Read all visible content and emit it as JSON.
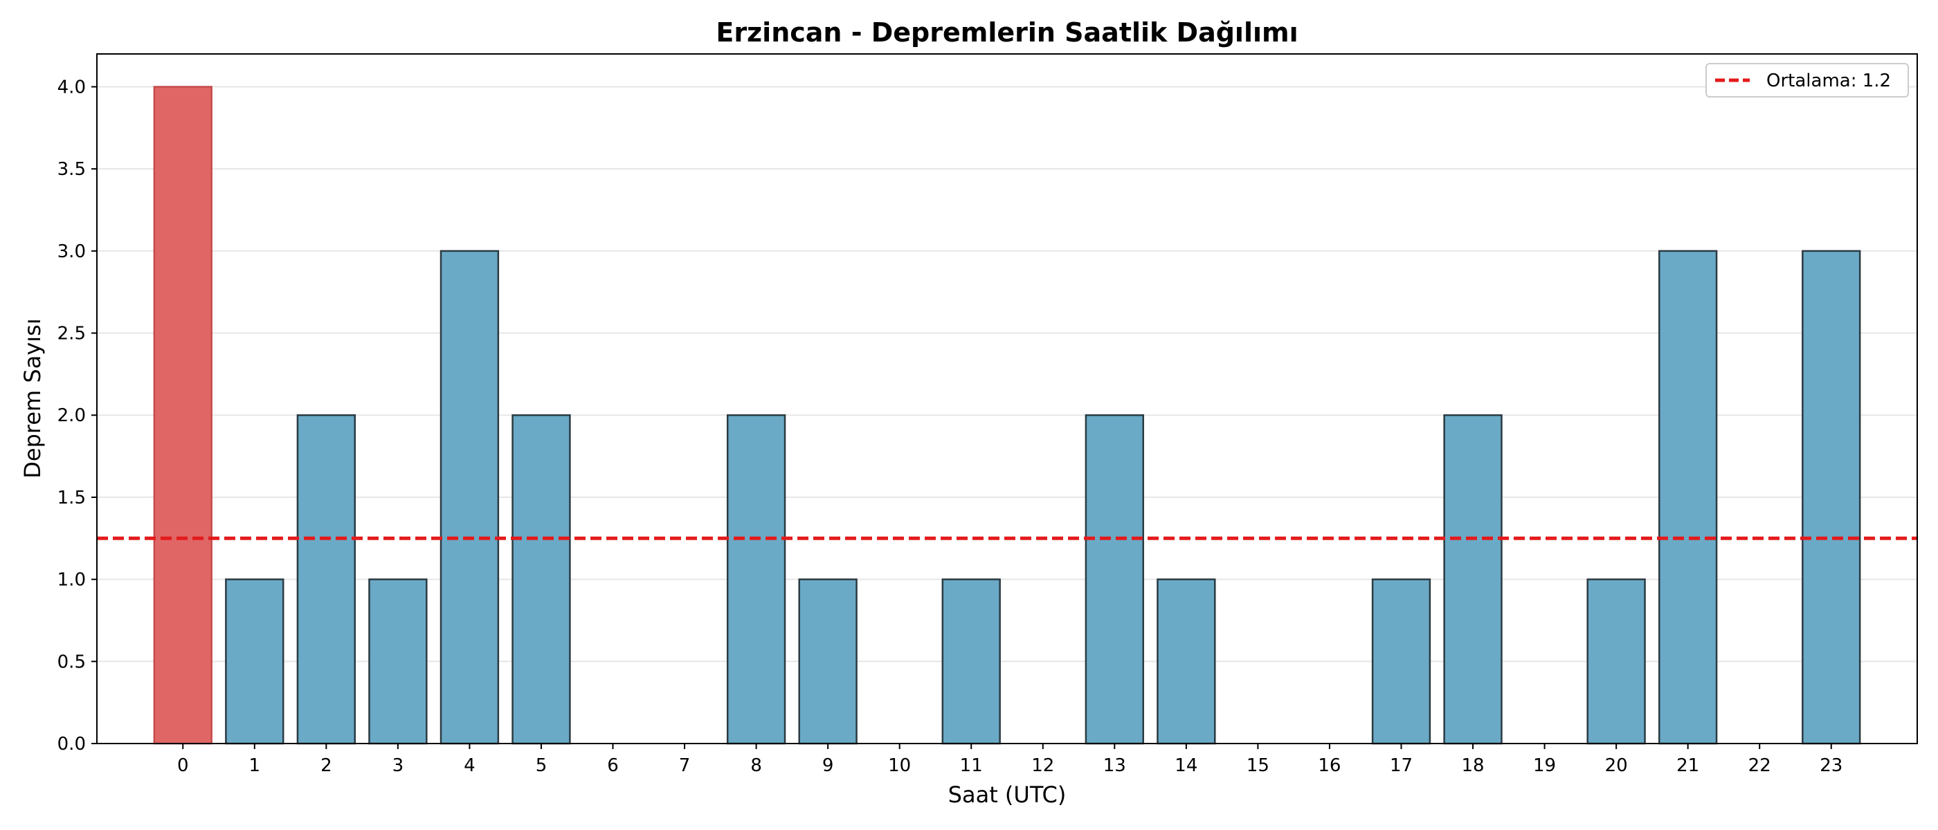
{
  "chart_data": {
    "type": "bar",
    "title": "Erzincan - Depremlerin Saatlik Dağılımı",
    "xlabel": "Saat (UTC)",
    "ylabel": "Deprem Sayısı",
    "categories": [
      "0",
      "1",
      "2",
      "3",
      "4",
      "5",
      "6",
      "7",
      "8",
      "9",
      "10",
      "11",
      "12",
      "13",
      "14",
      "15",
      "16",
      "17",
      "18",
      "19",
      "20",
      "21",
      "22",
      "23"
    ],
    "values": [
      4,
      1,
      2,
      1,
      3,
      2,
      0,
      0,
      2,
      1,
      0,
      1,
      0,
      2,
      1,
      0,
      0,
      1,
      2,
      0,
      1,
      3,
      0,
      3
    ],
    "ylim": [
      0,
      4.2
    ],
    "yticks": [
      "0.0",
      "0.5",
      "1.0",
      "1.5",
      "2.0",
      "2.5",
      "3.0",
      "3.5",
      "4.0"
    ],
    "grid": "horizontal",
    "legend_position": "top-right",
    "mean_line": {
      "value": 1.25,
      "label": "Ortalama: 1.2",
      "color": "#e41a1c",
      "style": "dashed"
    },
    "bar_color": "#6aaac6",
    "highlight_color": "#e06666",
    "highlight_index": 0,
    "bar_edge_color": "#2b3a42"
  }
}
